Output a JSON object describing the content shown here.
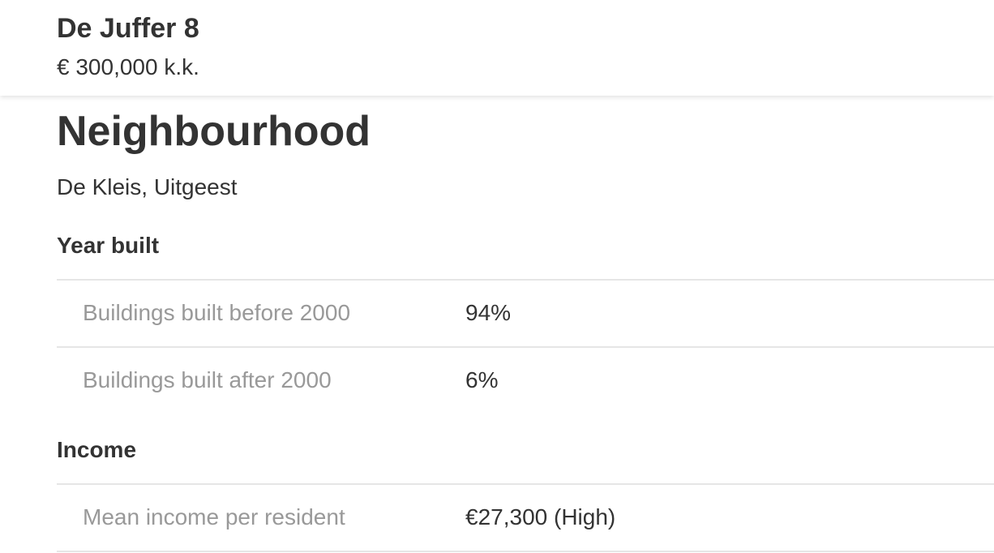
{
  "header": {
    "title": "De Juffer 8",
    "price": "€ 300,000 k.k."
  },
  "neighbourhood": {
    "heading": "Neighbourhood",
    "location": "De Kleis, Uitgeest",
    "year_built": {
      "heading": "Year built",
      "rows": [
        {
          "label": "Buildings built before 2000",
          "value": "94%"
        },
        {
          "label": "Buildings built after 2000",
          "value": "6%"
        }
      ]
    },
    "income": {
      "heading": "Income",
      "rows": [
        {
          "label": "Mean income per resident",
          "value": "€27,300 (High)"
        }
      ]
    }
  }
}
